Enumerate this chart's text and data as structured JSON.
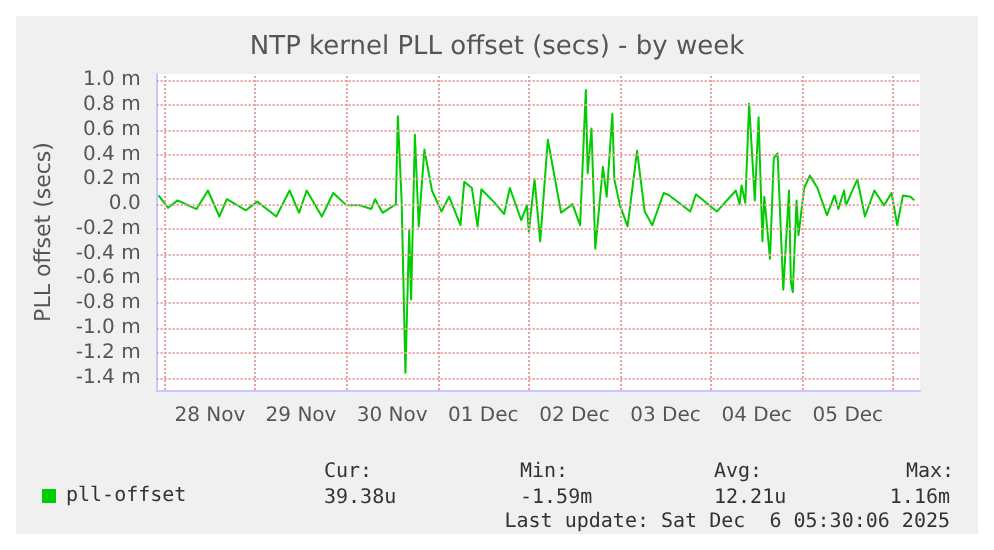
{
  "chart_data": {
    "type": "line",
    "title": "NTP kernel PLL offset (secs) - by week",
    "ylabel": "PLL offset (secs)",
    "x": [
      "2025-11-27T22:30",
      "2025-11-28T01:00",
      "2025-11-28T03:30",
      "2025-11-28T08:30",
      "2025-11-28T11:30",
      "2025-11-28T14:30",
      "2025-11-28T16:30",
      "2025-11-28T21:30",
      "2025-11-29T00:30",
      "2025-11-29T05:30",
      "2025-11-29T09:00",
      "2025-11-29T11:30",
      "2025-11-29T13:30",
      "2025-11-29T17:30",
      "2025-11-29T20:30",
      "2025-11-30T00:00",
      "2025-11-30T03:30",
      "2025-11-30T06:30",
      "2025-11-30T07:30",
      "2025-11-30T09:30",
      "2025-11-30T13:00",
      "2025-11-30T13:30",
      "2025-11-30T14:30",
      "2025-11-30T15:30",
      "2025-11-30T16:30",
      "2025-11-30T17:00",
      "2025-11-30T18:00",
      "2025-11-30T19:00",
      "2025-11-30T20:30",
      "2025-11-30T22:30",
      "2025-12-01T01:00",
      "2025-12-01T03:00",
      "2025-12-01T06:00",
      "2025-12-01T07:00",
      "2025-12-01T09:00",
      "2025-12-01T10:30",
      "2025-12-01T11:30",
      "2025-12-01T15:00",
      "2025-12-01T17:30",
      "2025-12-01T19:00",
      "2025-12-01T22:00",
      "2025-12-01T23:30",
      "2025-12-02T00:00",
      "2025-12-02T01:30",
      "2025-12-02T03:00",
      "2025-12-02T05:00",
      "2025-12-02T08:30",
      "2025-12-02T11:30",
      "2025-12-02T13:30",
      "2025-12-02T15:00",
      "2025-12-02T15:30",
      "2025-12-02T16:30",
      "2025-12-02T17:30",
      "2025-12-02T19:00",
      "2025-12-02T19:30",
      "2025-12-02T20:30",
      "2025-12-02T22:00",
      "2025-12-02T22:30",
      "2025-12-03T00:00",
      "2025-12-03T02:00",
      "2025-12-03T04:30",
      "2025-12-03T06:30",
      "2025-12-03T08:30",
      "2025-12-03T11:30",
      "2025-12-03T13:00",
      "2025-12-03T18:30",
      "2025-12-03T20:00",
      "2025-12-04T01:30",
      "2025-12-04T06:30",
      "2025-12-04T07:30",
      "2025-12-04T08:00",
      "2025-12-04T09:00",
      "2025-12-04T10:00",
      "2025-12-04T11:30",
      "2025-12-04T12:30",
      "2025-12-04T13:30",
      "2025-12-04T14:00",
      "2025-12-04T15:30",
      "2025-12-04T16:30",
      "2025-12-04T17:30",
      "2025-12-04T19:00",
      "2025-12-04T20:30",
      "2025-12-04T21:00",
      "2025-12-04T21:30",
      "2025-12-04T22:30",
      "2025-12-04T23:00",
      "2025-12-05T00:30",
      "2025-12-05T02:00",
      "2025-12-05T04:00",
      "2025-12-05T06:30",
      "2025-12-05T08:30",
      "2025-12-05T09:30",
      "2025-12-05T11:00",
      "2025-12-05T11:30",
      "2025-12-05T14:30",
      "2025-12-05T16:30",
      "2025-12-05T19:00",
      "2025-12-05T21:30",
      "2025-12-05T23:30",
      "2025-12-06T01:00",
      "2025-12-06T02:30",
      "2025-12-06T04:30",
      "2025-12-06T05:30"
    ],
    "series": [
      {
        "name": "pll-offset",
        "color": "#00cc00",
        "values": [
          0.07,
          -0.03,
          0.03,
          -0.04,
          0.11,
          -0.1,
          0.04,
          -0.05,
          0.02,
          -0.1,
          0.11,
          -0.07,
          0.11,
          -0.1,
          0.09,
          -0.01,
          -0.01,
          -0.04,
          0.04,
          -0.07,
          0.0,
          0.71,
          0.03,
          -1.36,
          -0.21,
          -0.77,
          0.56,
          -0.18,
          0.44,
          0.11,
          -0.06,
          0.06,
          -0.17,
          0.18,
          0.13,
          -0.18,
          0.12,
          0.01,
          -0.08,
          0.13,
          -0.13,
          -0.01,
          -0.22,
          0.2,
          -0.3,
          0.52,
          -0.07,
          0.0,
          -0.17,
          0.92,
          0.25,
          0.61,
          -0.36,
          0.13,
          0.3,
          0.06,
          0.73,
          0.2,
          -0.01,
          -0.18,
          0.43,
          -0.06,
          -0.17,
          0.09,
          0.07,
          -0.06,
          0.08,
          -0.06,
          0.11,
          0.0,
          0.15,
          0.01,
          0.81,
          0.03,
          0.7,
          -0.3,
          0.06,
          -0.44,
          0.37,
          0.41,
          -0.69,
          0.11,
          -0.63,
          -0.71,
          0.03,
          -0.25,
          0.13,
          0.23,
          0.13,
          -0.09,
          0.07,
          -0.04,
          0.11,
          -0.01,
          0.2,
          -0.1,
          0.11,
          -0.01,
          0.09,
          -0.17,
          0.07,
          0.06,
          0.03
        ]
      }
    ],
    "xlim": [
      "2025-11-27T22:00",
      "2025-12-06T07:00"
    ],
    "xticks": [
      {
        "value": "2025-11-28T00:00",
        "label": null
      },
      {
        "value": "2025-11-28T12:00",
        "label": "28 Nov"
      },
      {
        "value": "2025-11-29T00:00",
        "label": null
      },
      {
        "value": "2025-11-29T12:00",
        "label": "29 Nov"
      },
      {
        "value": "2025-11-30T00:00",
        "label": null
      },
      {
        "value": "2025-11-30T12:00",
        "label": "30 Nov"
      },
      {
        "value": "2025-12-01T00:00",
        "label": null
      },
      {
        "value": "2025-12-01T12:00",
        "label": "01 Dec"
      },
      {
        "value": "2025-12-02T00:00",
        "label": null
      },
      {
        "value": "2025-12-02T12:00",
        "label": "02 Dec"
      },
      {
        "value": "2025-12-03T00:00",
        "label": null
      },
      {
        "value": "2025-12-03T12:00",
        "label": "03 Dec"
      },
      {
        "value": "2025-12-04T00:00",
        "label": null
      },
      {
        "value": "2025-12-04T12:00",
        "label": "04 Dec"
      },
      {
        "value": "2025-12-05T00:00",
        "label": null
      },
      {
        "value": "2025-12-05T12:00",
        "label": "05 Dec"
      },
      {
        "value": "2025-12-06T00:00",
        "label": null
      }
    ],
    "ylim": [
      -1.5,
      1.05
    ],
    "yticks": [
      {
        "value": -1.4,
        "label": "-1.4 m"
      },
      {
        "value": -1.2,
        "label": "-1.2 m"
      },
      {
        "value": -1.0,
        "label": "-1.0 m"
      },
      {
        "value": -0.8,
        "label": "-0.8 m"
      },
      {
        "value": -0.6,
        "label": "-0.6 m"
      },
      {
        "value": -0.4,
        "label": "-0.4 m"
      },
      {
        "value": -0.2,
        "label": "-0.2 m"
      },
      {
        "value": 0,
        "label": "0.0"
      },
      {
        "value": 0.2,
        "label": "0.2 m"
      },
      {
        "value": 0.4,
        "label": "0.4 m"
      },
      {
        "value": 0.6,
        "label": "0.6 m"
      },
      {
        "value": 0.8,
        "label": "0.8 m"
      },
      {
        "value": 1.0,
        "label": "1.0 m"
      }
    ],
    "grid": true,
    "legend": "bottom left",
    "marker": "none",
    "line_style": "solid",
    "annotations": [
      "Cur:",
      "Min:",
      "Avg:",
      "Max:",
      "39.38u",
      "-1.59m",
      "12.21u",
      "1.16m",
      "Last update: Sat Dec  6 05:30:06 2025"
    ]
  }
}
